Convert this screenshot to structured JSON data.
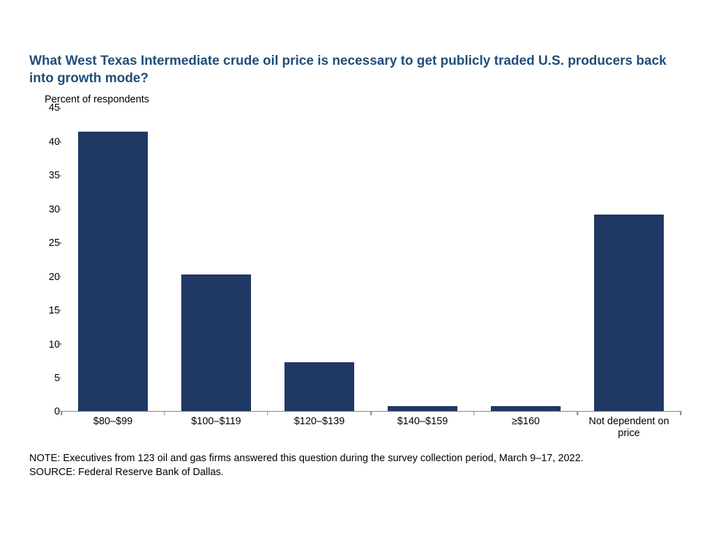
{
  "chart": {
    "type": "bar",
    "title": "What West Texas Intermediate crude oil price is necessary to get publicly traded U.S. producers back into growth mode?",
    "title_color": "#1f4e79",
    "title_fontsize": 19,
    "title_fontweight": "bold",
    "y_axis_label": "Percent of respondents",
    "label_fontsize": 14.5,
    "label_color": "#000000",
    "categories": [
      "$80–$99",
      "$100–$119",
      "$120–$139",
      "$140–$159",
      "≥$160",
      "Not dependent on price"
    ],
    "values": [
      41.5,
      20.3,
      7.3,
      0.8,
      0.8,
      29.2
    ],
    "bar_color": "#203864",
    "background_color": "#ffffff",
    "axis_color": "#808080",
    "ylim": [
      0,
      45
    ],
    "ytick_step": 5,
    "yticks": [
      0,
      5,
      10,
      15,
      20,
      25,
      30,
      35,
      40,
      45
    ],
    "bar_width_pct": 68,
    "tick_fontsize": 14.5,
    "note": "NOTE: Executives from 123 oil and gas firms answered this question during the survey collection period, March 9–17, 2022.",
    "source": "SOURCE: Federal Reserve Bank of Dallas."
  }
}
